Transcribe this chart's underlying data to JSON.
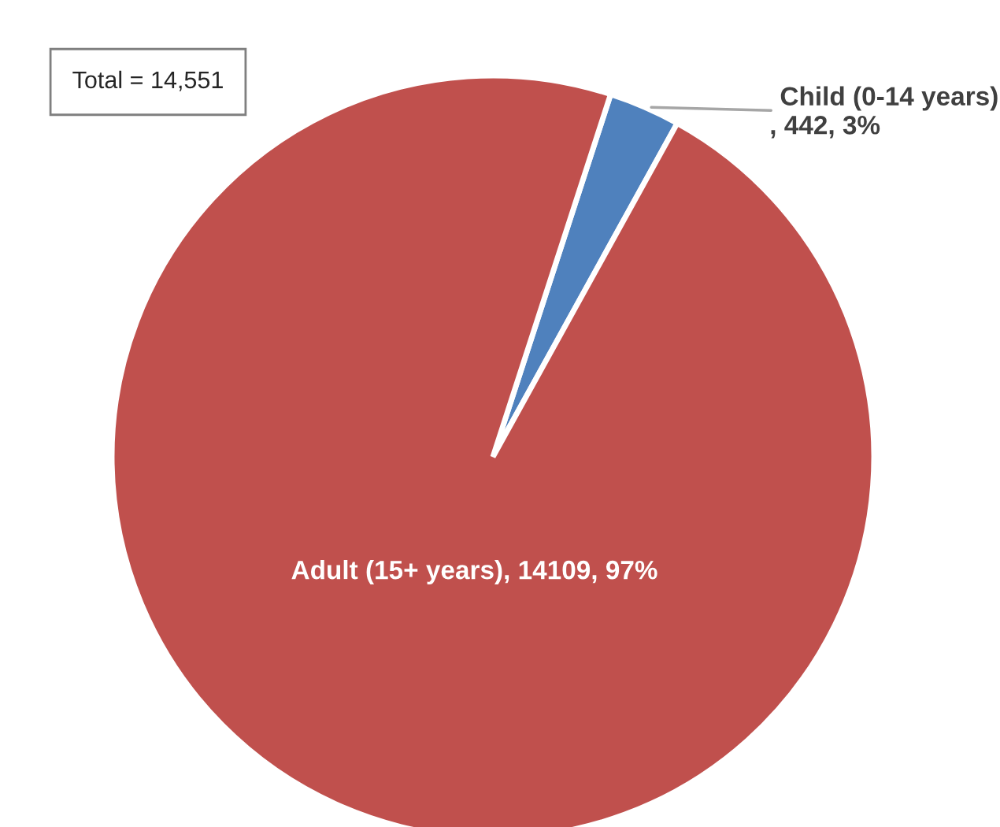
{
  "chart_data": {
    "type": "pie",
    "categories": [
      "Child (0-14 years)",
      "Adult (15+ years)"
    ],
    "values": [
      442,
      14109
    ],
    "colors": [
      "#4f81bd",
      "#c0504d"
    ],
    "value_labels": [
      ", 442, 3%",
      ", 14109, 97%"
    ],
    "annotations": [
      "Total = 14,551"
    ],
    "legend": false
  }
}
